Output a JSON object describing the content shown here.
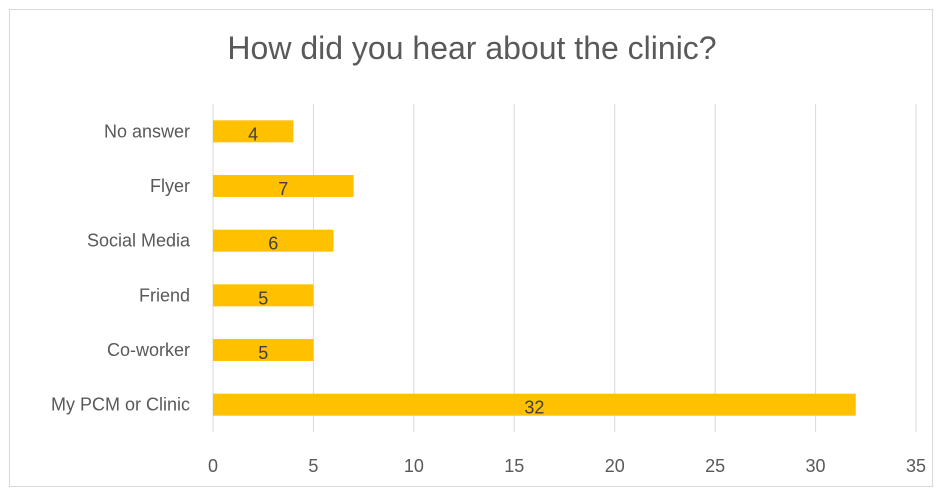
{
  "chart_data": {
    "type": "bar",
    "orientation": "horizontal",
    "title": "How did you hear about the clinic?",
    "categories": [
      "No answer",
      "Flyer",
      "Social Media",
      "Friend",
      "Co-worker",
      "My PCM or Clinic"
    ],
    "values": [
      4,
      7,
      6,
      5,
      5,
      32
    ],
    "xlim": [
      0,
      35
    ],
    "xticks": [
      0,
      5,
      10,
      15,
      20,
      25,
      30,
      35
    ],
    "grid": "vertical",
    "legend": "none",
    "bar_color": "#ffc000",
    "grid_color": "#d9d9d9"
  }
}
